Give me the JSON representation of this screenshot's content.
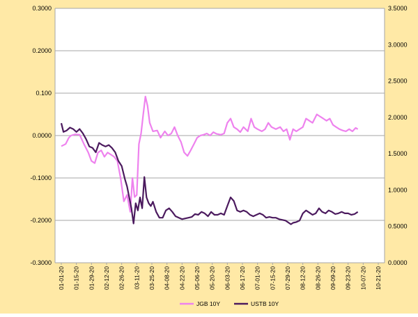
{
  "chart_data": {
    "type": "line",
    "title": "",
    "background_color": "#FFE9A6",
    "plot_background_color": "#FFFFFF",
    "grid": true,
    "legend_position": "bottom-center",
    "left_axis": {
      "min": -0.3,
      "max": 0.3,
      "step": 0.1,
      "ticks": [
        "0.3000",
        "0.2000",
        "0.100",
        "0.0000",
        "-0.1000",
        "-0.2000",
        "-0.3000"
      ]
    },
    "right_axis": {
      "min": 0.0,
      "max": 3.5,
      "step": 0.5,
      "ticks": [
        "3.5000",
        "3.0000",
        "2.5000",
        "2.0000",
        "1.5000",
        "1.0000",
        "0.5000",
        "0.0000"
      ]
    },
    "x_axis": {
      "start": "2020-01-01",
      "end": "2020-10-21",
      "tick_labels": [
        "01-01-20",
        "01-15-20",
        "01-29-20",
        "02-12-20",
        "02-26-20",
        "03-11-20",
        "03-25-20",
        "04-08-20",
        "04-22-20",
        "05-06-20",
        "05-20-20",
        "06-03-20",
        "06-17-20",
        "07-01-20",
        "07-15-20",
        "07-29-20",
        "08-12-20",
        "08-26-20",
        "09-09-20",
        "09-23-20",
        "10-07-20",
        "10-21-20"
      ]
    },
    "series": [
      {
        "name": "JGB 10Y",
        "axis": "left",
        "color": "#EE82EE",
        "points": [
          [
            "2020-01-01",
            -0.025
          ],
          [
            "2020-01-05",
            -0.02
          ],
          [
            "2020-01-08",
            -0.005
          ],
          [
            "2020-01-10",
            0.0
          ],
          [
            "2020-01-14",
            0.003
          ],
          [
            "2020-01-18",
            0.002
          ],
          [
            "2020-01-22",
            -0.02
          ],
          [
            "2020-01-26",
            -0.04
          ],
          [
            "2020-01-29",
            -0.06
          ],
          [
            "2020-02-01",
            -0.065
          ],
          [
            "2020-02-04",
            -0.04
          ],
          [
            "2020-02-07",
            -0.035
          ],
          [
            "2020-02-10",
            -0.05
          ],
          [
            "2020-02-13",
            -0.04
          ],
          [
            "2020-02-16",
            -0.045
          ],
          [
            "2020-02-19",
            -0.05
          ],
          [
            "2020-02-22",
            -0.06
          ],
          [
            "2020-02-25",
            -0.1
          ],
          [
            "2020-02-28",
            -0.155
          ],
          [
            "2020-03-02",
            -0.14
          ],
          [
            "2020-03-05",
            -0.18
          ],
          [
            "2020-03-07",
            -0.1
          ],
          [
            "2020-03-09",
            -0.145
          ],
          [
            "2020-03-11",
            -0.14
          ],
          [
            "2020-03-13",
            -0.02
          ],
          [
            "2020-03-15",
            0.005
          ],
          [
            "2020-03-17",
            0.05
          ],
          [
            "2020-03-19",
            0.092
          ],
          [
            "2020-03-21",
            0.07
          ],
          [
            "2020-03-23",
            0.03
          ],
          [
            "2020-03-26",
            0.01
          ],
          [
            "2020-03-30",
            0.012
          ],
          [
            "2020-04-02",
            -0.005
          ],
          [
            "2020-04-06",
            0.01
          ],
          [
            "2020-04-09",
            0.0
          ],
          [
            "2020-04-12",
            0.005
          ],
          [
            "2020-04-15",
            0.02
          ],
          [
            "2020-04-18",
            0.0
          ],
          [
            "2020-04-21",
            -0.015
          ],
          [
            "2020-04-24",
            -0.04
          ],
          [
            "2020-04-27",
            -0.048
          ],
          [
            "2020-04-30",
            -0.035
          ],
          [
            "2020-05-03",
            -0.02
          ],
          [
            "2020-05-06",
            -0.005
          ],
          [
            "2020-05-09",
            0.0
          ],
          [
            "2020-05-12",
            0.002
          ],
          [
            "2020-05-15",
            0.005
          ],
          [
            "2020-05-18",
            0.0
          ],
          [
            "2020-05-21",
            0.008
          ],
          [
            "2020-05-24",
            0.004
          ],
          [
            "2020-05-28",
            0.002
          ],
          [
            "2020-05-31",
            0.005
          ],
          [
            "2020-06-03",
            0.03
          ],
          [
            "2020-06-06",
            0.04
          ],
          [
            "2020-06-09",
            0.02
          ],
          [
            "2020-06-12",
            0.015
          ],
          [
            "2020-06-15",
            0.008
          ],
          [
            "2020-06-18",
            0.02
          ],
          [
            "2020-06-22",
            0.01
          ],
          [
            "2020-06-25",
            0.04
          ],
          [
            "2020-06-28",
            0.02
          ],
          [
            "2020-07-01",
            0.015
          ],
          [
            "2020-07-05",
            0.01
          ],
          [
            "2020-07-08",
            0.015
          ],
          [
            "2020-07-11",
            0.03
          ],
          [
            "2020-07-14",
            0.02
          ],
          [
            "2020-07-18",
            0.015
          ],
          [
            "2020-07-22",
            0.02
          ],
          [
            "2020-07-25",
            0.01
          ],
          [
            "2020-07-28",
            0.015
          ],
          [
            "2020-07-31",
            -0.01
          ],
          [
            "2020-08-03",
            0.015
          ],
          [
            "2020-08-06",
            0.01
          ],
          [
            "2020-08-09",
            0.015
          ],
          [
            "2020-08-12",
            0.02
          ],
          [
            "2020-08-15",
            0.04
          ],
          [
            "2020-08-18",
            0.035
          ],
          [
            "2020-08-21",
            0.03
          ],
          [
            "2020-08-25",
            0.05
          ],
          [
            "2020-08-28",
            0.045
          ],
          [
            "2020-08-31",
            0.04
          ],
          [
            "2020-09-03",
            0.035
          ],
          [
            "2020-09-06",
            0.04
          ],
          [
            "2020-09-09",
            0.025
          ],
          [
            "2020-09-12",
            0.02
          ],
          [
            "2020-09-15",
            0.015
          ],
          [
            "2020-09-18",
            0.012
          ],
          [
            "2020-09-21",
            0.01
          ],
          [
            "2020-09-24",
            0.015
          ],
          [
            "2020-09-27",
            0.01
          ],
          [
            "2020-09-30",
            0.018
          ],
          [
            "2020-10-02",
            0.015
          ]
        ]
      },
      {
        "name": "USTB 10Y",
        "axis": "right",
        "color": "#4B1A5E",
        "points": [
          [
            "2020-01-01",
            1.92
          ],
          [
            "2020-01-03",
            1.8
          ],
          [
            "2020-01-06",
            1.82
          ],
          [
            "2020-01-09",
            1.86
          ],
          [
            "2020-01-12",
            1.84
          ],
          [
            "2020-01-15",
            1.8
          ],
          [
            "2020-01-18",
            1.84
          ],
          [
            "2020-01-21",
            1.78
          ],
          [
            "2020-01-24",
            1.7
          ],
          [
            "2020-01-27",
            1.6
          ],
          [
            "2020-01-30",
            1.58
          ],
          [
            "2020-02-02",
            1.52
          ],
          [
            "2020-02-05",
            1.65
          ],
          [
            "2020-02-08",
            1.62
          ],
          [
            "2020-02-11",
            1.6
          ],
          [
            "2020-02-14",
            1.62
          ],
          [
            "2020-02-17",
            1.58
          ],
          [
            "2020-02-20",
            1.52
          ],
          [
            "2020-02-23",
            1.4
          ],
          [
            "2020-02-26",
            1.33
          ],
          [
            "2020-02-29",
            1.15
          ],
          [
            "2020-03-02",
            1.05
          ],
          [
            "2020-03-04",
            0.9
          ],
          [
            "2020-03-06",
            0.75
          ],
          [
            "2020-03-08",
            0.54
          ],
          [
            "2020-03-10",
            0.82
          ],
          [
            "2020-03-12",
            0.72
          ],
          [
            "2020-03-14",
            0.9
          ],
          [
            "2020-03-16",
            0.75
          ],
          [
            "2020-03-18",
            1.18
          ],
          [
            "2020-03-20",
            0.9
          ],
          [
            "2020-03-22",
            0.82
          ],
          [
            "2020-03-24",
            0.78
          ],
          [
            "2020-03-26",
            0.84
          ],
          [
            "2020-03-29",
            0.7
          ],
          [
            "2020-04-01",
            0.62
          ],
          [
            "2020-04-04",
            0.62
          ],
          [
            "2020-04-07",
            0.72
          ],
          [
            "2020-04-10",
            0.75
          ],
          [
            "2020-04-13",
            0.7
          ],
          [
            "2020-04-16",
            0.64
          ],
          [
            "2020-04-19",
            0.62
          ],
          [
            "2020-04-22",
            0.6
          ],
          [
            "2020-04-25",
            0.61
          ],
          [
            "2020-04-28",
            0.62
          ],
          [
            "2020-05-01",
            0.63
          ],
          [
            "2020-05-04",
            0.67
          ],
          [
            "2020-05-07",
            0.66
          ],
          [
            "2020-05-10",
            0.7
          ],
          [
            "2020-05-13",
            0.68
          ],
          [
            "2020-05-16",
            0.64
          ],
          [
            "2020-05-19",
            0.7
          ],
          [
            "2020-05-22",
            0.66
          ],
          [
            "2020-05-25",
            0.66
          ],
          [
            "2020-05-28",
            0.68
          ],
          [
            "2020-05-31",
            0.66
          ],
          [
            "2020-06-03",
            0.78
          ],
          [
            "2020-06-06",
            0.9
          ],
          [
            "2020-06-09",
            0.85
          ],
          [
            "2020-06-12",
            0.72
          ],
          [
            "2020-06-15",
            0.7
          ],
          [
            "2020-06-18",
            0.72
          ],
          [
            "2020-06-21",
            0.7
          ],
          [
            "2020-06-24",
            0.66
          ],
          [
            "2020-06-27",
            0.64
          ],
          [
            "2020-06-30",
            0.66
          ],
          [
            "2020-07-03",
            0.68
          ],
          [
            "2020-07-06",
            0.66
          ],
          [
            "2020-07-09",
            0.62
          ],
          [
            "2020-07-12",
            0.63
          ],
          [
            "2020-07-15",
            0.62
          ],
          [
            "2020-07-18",
            0.62
          ],
          [
            "2020-07-21",
            0.6
          ],
          [
            "2020-07-24",
            0.59
          ],
          [
            "2020-07-27",
            0.58
          ],
          [
            "2020-07-30",
            0.55
          ],
          [
            "2020-08-01",
            0.53
          ],
          [
            "2020-08-03",
            0.55
          ],
          [
            "2020-08-06",
            0.56
          ],
          [
            "2020-08-09",
            0.58
          ],
          [
            "2020-08-12",
            0.68
          ],
          [
            "2020-08-15",
            0.72
          ],
          [
            "2020-08-18",
            0.69
          ],
          [
            "2020-08-21",
            0.66
          ],
          [
            "2020-08-24",
            0.68
          ],
          [
            "2020-08-27",
            0.75
          ],
          [
            "2020-08-30",
            0.7
          ],
          [
            "2020-09-02",
            0.68
          ],
          [
            "2020-09-05",
            0.72
          ],
          [
            "2020-09-08",
            0.7
          ],
          [
            "2020-09-11",
            0.67
          ],
          [
            "2020-09-14",
            0.68
          ],
          [
            "2020-09-17",
            0.7
          ],
          [
            "2020-09-20",
            0.68
          ],
          [
            "2020-09-23",
            0.68
          ],
          [
            "2020-09-26",
            0.66
          ],
          [
            "2020-09-29",
            0.67
          ],
          [
            "2020-10-02",
            0.7
          ]
        ]
      }
    ]
  }
}
